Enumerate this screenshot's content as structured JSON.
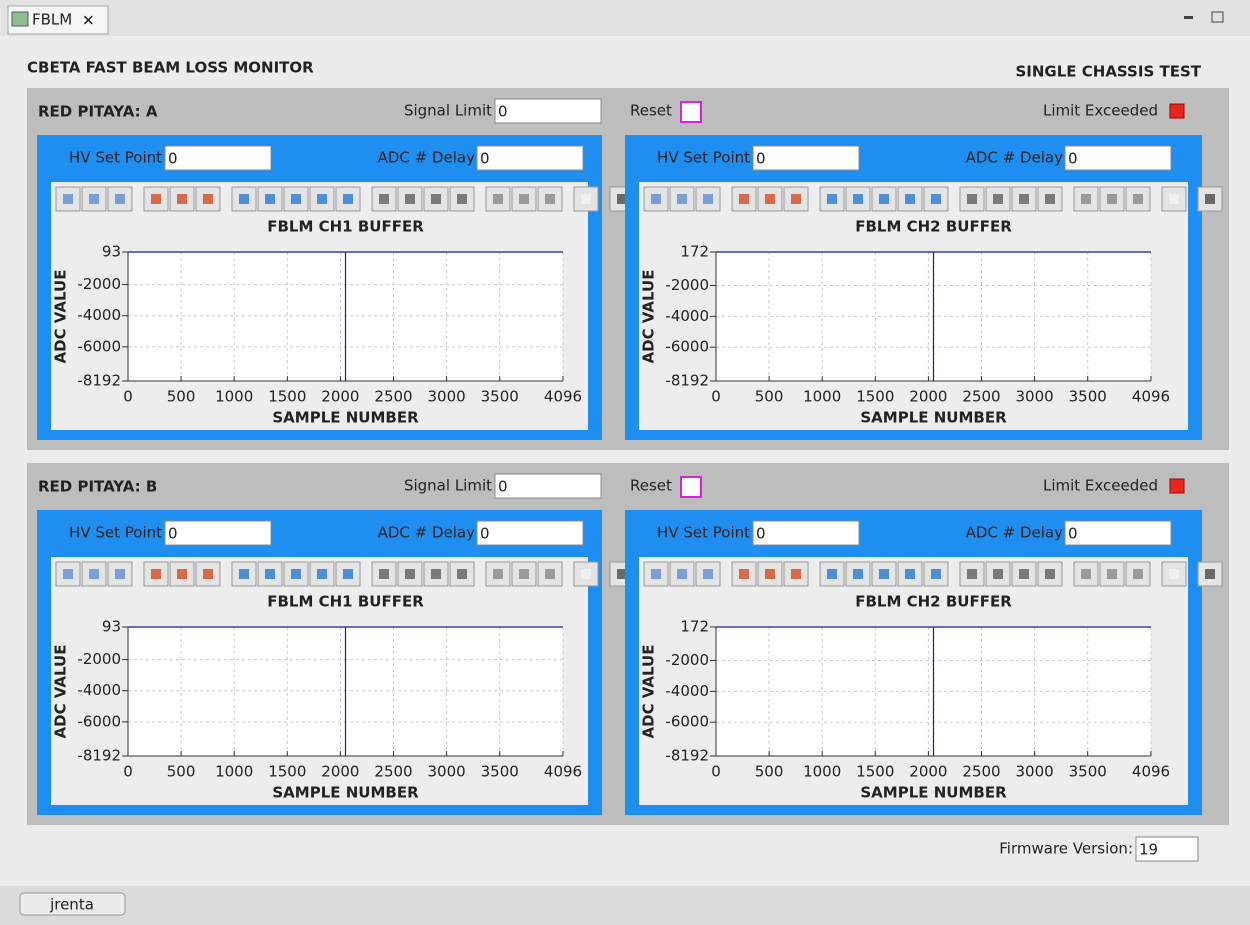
{
  "tab": "FBLM",
  "title": "CBETA FAST BEAM LOSS MONITOR",
  "subtitle": "SINGLE CHASSIS TEST",
  "panels": [
    {
      "name": "RED PITAYA: A",
      "signal_limit_label": "Signal Limit",
      "signal_limit": 0,
      "reset_label": "Reset",
      "limit_label": "Limit Exceeded",
      "plots": [
        {
          "hv_label": "HV Set Point",
          "hv": 0,
          "delay_label": "ADC # Delay",
          "delay": 0,
          "chart": {
            "type": "line",
            "title": "FBLM CH1 BUFFER",
            "x_label": "SAMPLE NUMBER",
            "y_label": "ADC VALUE",
            "xlim": [
              0,
              4096
            ],
            "ylim": [
              -8192,
              93
            ],
            "xticks": [
              0,
              500,
              1000,
              1500,
              2000,
              2500,
              3000,
              3500,
              4096
            ],
            "yticks": [
              -8192,
              -6000,
              -4000,
              -2000,
              93
            ],
            "grid": true,
            "series": [
              {
                "color": "#1a1a9e",
                "x": [
                  0,
                  2048,
                  2048,
                  2048,
                  4096
                ],
                "values": [
                  93,
                  93,
                  -8192,
                  93,
                  93
                ]
              }
            ]
          }
        },
        {
          "hv_label": "HV Set Point",
          "hv": 0,
          "delay_label": "ADC # Delay",
          "delay": 0,
          "chart": {
            "type": "line",
            "title": "FBLM CH2 BUFFER",
            "x_label": "SAMPLE NUMBER",
            "y_label": "ADC VALUE",
            "xlim": [
              0,
              4096
            ],
            "ylim": [
              -8192,
              172
            ],
            "xticks": [
              0,
              500,
              1000,
              1500,
              2000,
              2500,
              3000,
              3500,
              4096
            ],
            "yticks": [
              -8192,
              -6000,
              -4000,
              -2000,
              172
            ],
            "grid": true,
            "series": [
              {
                "color": "#1a1a9e",
                "x": [
                  0,
                  2048,
                  2048,
                  2048,
                  4096
                ],
                "values": [
                  172,
                  172,
                  -8192,
                  172,
                  172
                ]
              }
            ]
          }
        }
      ]
    },
    {
      "name": "RED PITAYA: B",
      "signal_limit_label": "Signal Limit",
      "signal_limit": 0,
      "reset_label": "Reset",
      "limit_label": "Limit Exceeded",
      "plots": [
        {
          "hv_label": "HV Set Point",
          "hv": 0,
          "delay_label": "ADC # Delay",
          "delay": 0,
          "chart": {
            "type": "line",
            "title": "FBLM CH1 BUFFER",
            "x_label": "SAMPLE NUMBER",
            "y_label": "ADC VALUE",
            "xlim": [
              0,
              4096
            ],
            "ylim": [
              -8192,
              93
            ],
            "xticks": [
              0,
              500,
              1000,
              1500,
              2000,
              2500,
              3000,
              3500,
              4096
            ],
            "yticks": [
              -8192,
              -6000,
              -4000,
              -2000,
              93
            ],
            "grid": true,
            "series": [
              {
                "color": "#1a1a9e",
                "x": [
                  0,
                  2048,
                  2048,
                  2048,
                  4096
                ],
                "values": [
                  93,
                  93,
                  -8192,
                  93,
                  93
                ]
              }
            ]
          }
        },
        {
          "hv_label": "HV Set Point",
          "hv": 0,
          "delay_label": "ADC # Delay",
          "delay": 0,
          "chart": {
            "type": "line",
            "title": "FBLM CH2 BUFFER",
            "x_label": "SAMPLE NUMBER",
            "y_label": "ADC VALUE",
            "xlim": [
              0,
              4096
            ],
            "ylim": [
              -8192,
              172
            ],
            "xticks": [
              0,
              500,
              1000,
              1500,
              2000,
              2500,
              3000,
              3500,
              4096
            ],
            "yticks": [
              -8192,
              -6000,
              -4000,
              -2000,
              172
            ],
            "grid": true,
            "series": [
              {
                "color": "#1a1a9e",
                "x": [
                  0,
                  2048,
                  2048,
                  2048,
                  4096
                ],
                "values": [
                  172,
                  172,
                  -8192,
                  172,
                  172
                ]
              }
            ]
          }
        }
      ]
    }
  ],
  "firmware_label": "Firmware Version:",
  "firmware": 19,
  "user": "jrenta"
}
